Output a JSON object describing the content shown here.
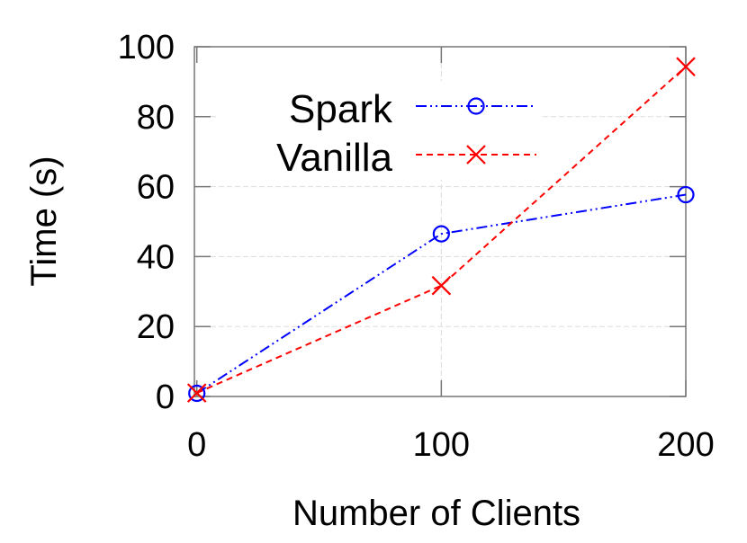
{
  "chart_data": {
    "type": "line",
    "title": "",
    "xlabel": "Number of Clients",
    "ylabel": "Time (s)",
    "xlim": [
      -1,
      200
    ],
    "ylim": [
      0,
      100
    ],
    "x_ticks": [
      0,
      100,
      200
    ],
    "y_ticks": [
      0,
      20,
      40,
      60,
      80,
      100
    ],
    "grid": true,
    "legend_position": "top-center",
    "x": [
      0,
      100,
      200
    ],
    "series": [
      {
        "name": "Spark",
        "values": [
          0.9,
          46.5,
          57.7
        ],
        "color": "#0000ff",
        "marker": "circle",
        "line_style": "dash-dot-dot"
      },
      {
        "name": "Vanilla",
        "values": [
          1.0,
          31.7,
          94.3
        ],
        "color": "#ff0000",
        "marker": "x",
        "line_style": "dashed"
      }
    ]
  }
}
